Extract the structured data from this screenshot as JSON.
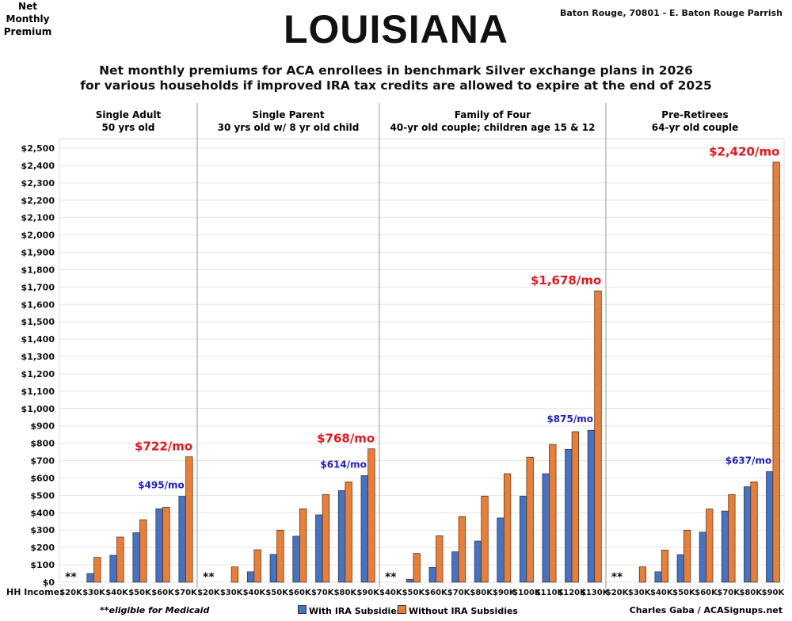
{
  "header": {
    "title": "LOUISIANA",
    "location": "Baton Rouge, 70801 - E. Baton Rouge Parrish",
    "subtitle_line1": "Net monthly premiums for ACA enrollees in benchmark Silver exchange plans in 2026",
    "subtitle_line2": "for various households if improved IRA tax credits are allowed to expire at the end of 2025"
  },
  "footer": {
    "medicaid_note": "**eligible for Medicaid",
    "credit": "Charles Gaba / ACASignups.net"
  },
  "colors": {
    "with": "#4472C4",
    "without": "#ED7D31",
    "callout_red": "#E8151B",
    "callout_blue": "#1E1EC8"
  },
  "chart_data": {
    "type": "bar",
    "ylabel_line1": "Net Monthly",
    "ylabel_line2": "Premium",
    "xlabel": "HH Income:",
    "ylim": [
      0,
      2500
    ],
    "ytick_step": 100,
    "grid": true,
    "legend_placement": "bottom",
    "series_names": [
      "With IRA Subsidies",
      "Without IRA Subsidies"
    ],
    "medicaid_marker": "**",
    "panels": [
      {
        "title": "Single Adult",
        "subtitle": "50 yrs old",
        "categories": [
          "$20K",
          "$30K",
          "$40K",
          "$50K",
          "$60K",
          "$70K"
        ],
        "with": [
          null,
          50,
          155,
          285,
          423,
          495
        ],
        "without": [
          null,
          143,
          260,
          360,
          432,
          722
        ],
        "callout_without": "$722/mo",
        "callout_with": "$495/mo"
      },
      {
        "title": "Single Parent",
        "subtitle": "30 yrs old w/ 8 yr old child",
        "categories": [
          "$20K",
          "$30K",
          "$40K",
          "$50K",
          "$60K",
          "$70K",
          "$80K",
          "$90K"
        ],
        "with": [
          null,
          0,
          60,
          160,
          265,
          388,
          528,
          614
        ],
        "without": [
          null,
          88,
          187,
          300,
          423,
          505,
          578,
          768
        ],
        "callout_without": "$768/mo",
        "callout_with": "$614/mo"
      },
      {
        "title": "Family of Four",
        "subtitle": "40-yr old couple; children age 15 & 12",
        "categories": [
          "$40K",
          "$50K",
          "$60K",
          "$70K",
          "$80K",
          "$90K",
          "$100K",
          "$110K",
          "$120K",
          "$130K"
        ],
        "with": [
          null,
          17,
          85,
          175,
          237,
          370,
          496,
          625,
          765,
          875
        ],
        "without": [
          null,
          166,
          267,
          378,
          496,
          625,
          720,
          793,
          867,
          1678
        ],
        "callout_without": "$1,678/mo",
        "callout_with": "$875/mo"
      },
      {
        "title": "Pre-Retirees",
        "subtitle": "64-yr old couple",
        "categories": [
          "$20K",
          "$30K",
          "$40K",
          "$50K",
          "$60K",
          "$70K",
          "$80K",
          "$90K"
        ],
        "with": [
          null,
          0,
          60,
          158,
          288,
          410,
          550,
          637
        ],
        "without": [
          null,
          88,
          185,
          300,
          422,
          505,
          578,
          2420
        ],
        "callout_without": "$2,420/mo",
        "callout_with": "$637/mo"
      }
    ]
  }
}
